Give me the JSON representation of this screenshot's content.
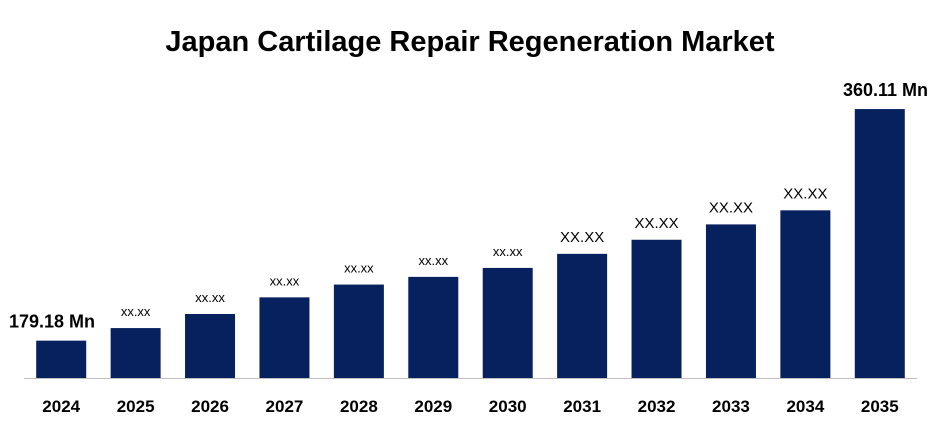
{
  "colors": {
    "bar": "#06215e",
    "axis": "#bfbfbf",
    "text": "#000000"
  },
  "chart_data": {
    "type": "bar",
    "title": "Japan Cartilage Repair Regeneration Market",
    "categories": [
      "2024",
      "2025",
      "2026",
      "2027",
      "2028",
      "2029",
      "2030",
      "2031",
      "2032",
      "2033",
      "2034",
      "2035"
    ],
    "values": [
      179.18,
      189,
      200,
      213,
      223,
      229,
      236,
      247,
      258,
      270,
      281,
      360.11
    ],
    "data_labels": [
      "179.18 Mn",
      "xx.xx",
      "xx.xx",
      "xx.xx",
      "xx.xx",
      "xx.xx",
      "xx.xx",
      "XX.XX",
      "XX.XX",
      "XX.XX",
      "XX.XX",
      "360.11 Mn"
    ],
    "ylim": [
      150,
      375
    ],
    "grid": false,
    "legend": "none"
  }
}
